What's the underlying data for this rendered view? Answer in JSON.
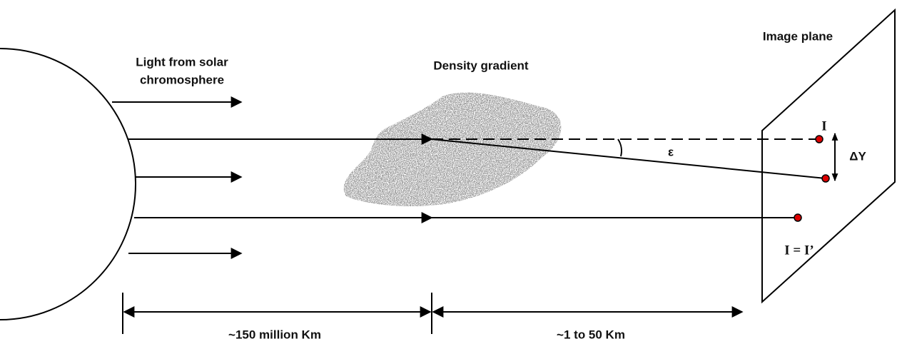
{
  "labels": {
    "light_source": [
      "Light from solar",
      "chromosphere"
    ],
    "density_gradient": "Density gradient",
    "image_plane": "Image plane",
    "point_i": "I",
    "delta_y": "ΔY",
    "epsilon": "ε",
    "point_equal": "I = I’",
    "distance_sun": "~150 million Km",
    "distance_plane": "~1 to 50 Km"
  }
}
